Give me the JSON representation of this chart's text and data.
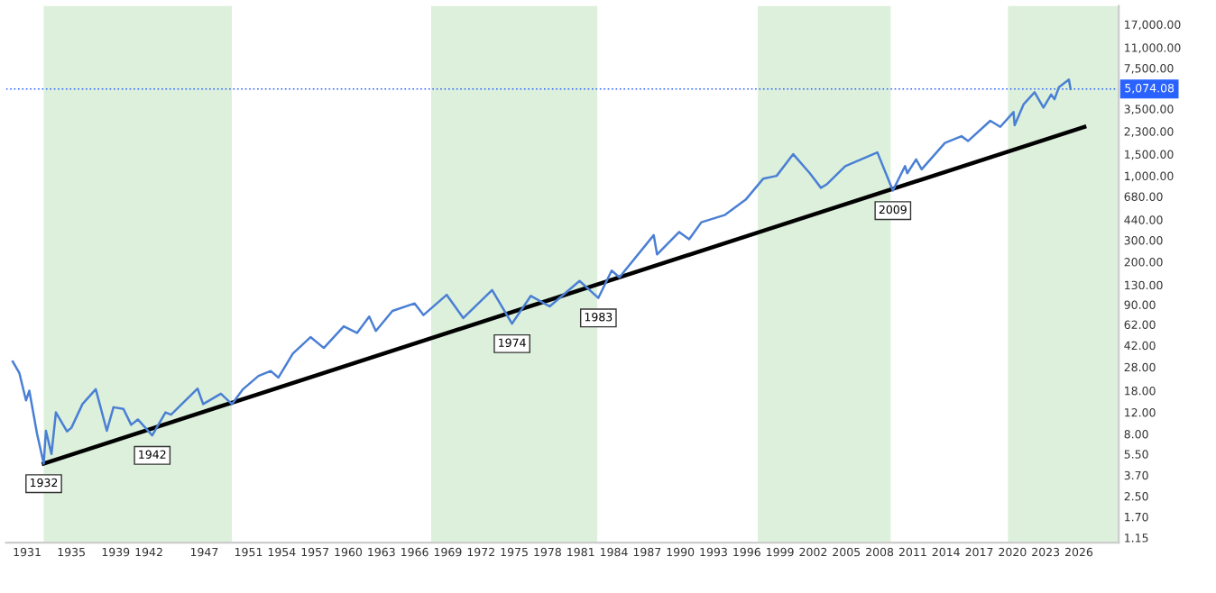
{
  "chart_data": {
    "type": "line",
    "log": "y",
    "grid": false,
    "legend": false,
    "marker": "none",
    "line_style": "solid",
    "xlim": [
      1929.1,
      2029.6
    ],
    "ylim": [
      1.05,
      24000
    ],
    "xticks": [
      1931,
      1935,
      1939,
      1942,
      1947,
      1951,
      1954,
      1957,
      1960,
      1963,
      1966,
      1969,
      1972,
      1975,
      1978,
      1981,
      1984,
      1987,
      1990,
      1993,
      1996,
      1999,
      2002,
      2005,
      2008,
      2011,
      2014,
      2017,
      2020,
      2023,
      2026
    ],
    "yticks": [
      {
        "value": 1.15,
        "label": "1.15"
      },
      {
        "value": 1.7,
        "label": "1.70"
      },
      {
        "value": 2.5,
        "label": "2.50"
      },
      {
        "value": 3.7,
        "label": "3.70"
      },
      {
        "value": 5.5,
        "label": "5.50"
      },
      {
        "value": 8,
        "label": "8.00"
      },
      {
        "value": 12,
        "label": "12.00"
      },
      {
        "value": 18,
        "label": "18.00"
      },
      {
        "value": 28,
        "label": "28.00"
      },
      {
        "value": 42,
        "label": "42.00"
      },
      {
        "value": 62,
        "label": "62.00"
      },
      {
        "value": 90,
        "label": "90.00"
      },
      {
        "value": 130,
        "label": "130.00"
      },
      {
        "value": 200,
        "label": "200.00"
      },
      {
        "value": 300,
        "label": "300.00"
      },
      {
        "value": 440,
        "label": "440.00"
      },
      {
        "value": 680,
        "label": "680.00"
      },
      {
        "value": 1000,
        "label": "1,000.00"
      },
      {
        "value": 1500,
        "label": "1,500.00"
      },
      {
        "value": 2300,
        "label": "2,300.00"
      },
      {
        "value": 3500,
        "label": "3,500.00"
      },
      {
        "value": 7500,
        "label": "7,500.00"
      },
      {
        "value": 11000,
        "label": "11,000.00"
      },
      {
        "value": 17000,
        "label": "17,000.00"
      }
    ],
    "series": [
      {
        "color": "#4a7fd4",
        "x": [
          1929.7,
          1930.3,
          1930.9,
          1931.2,
          1931.9,
          1932.5,
          1932.7,
          1933.2,
          1933.6,
          1934.6,
          1935.0,
          1936.0,
          1937.2,
          1938.2,
          1938.8,
          1939.7,
          1940.4,
          1941.0,
          1942.3,
          1943.5,
          1944.0,
          1946.4,
          1946.9,
          1948.5,
          1949.5,
          1950.5,
          1951.9,
          1953.0,
          1953.7,
          1955.0,
          1956.6,
          1957.8,
          1959.6,
          1960.8,
          1961.9,
          1962.5,
          1964.0,
          1966.0,
          1966.8,
          1968.9,
          1970.4,
          1973.0,
          1974.8,
          1976.5,
          1978.2,
          1980.9,
          1982.6,
          1983.8,
          1984.5,
          1987.6,
          1987.9,
          1989.9,
          1990.8,
          1991.9,
          1994.0,
          1995.9,
          1997.5,
          1998.7,
          2000.2,
          2001.7,
          2002.7,
          2003.2,
          2004.9,
          2007.8,
          2009.2,
          2010.3,
          2010.5,
          2011.3,
          2011.8,
          2013.9,
          2015.4,
          2016.0,
          2018.0,
          2018.9,
          2020.1,
          2020.2,
          2021.0,
          2022.0,
          2022.8,
          2023.5,
          2023.8,
          2024.2,
          2025.1,
          2025.25
        ],
        "values": [
          31,
          25,
          15,
          18,
          8,
          4.6,
          8.5,
          5.5,
          12,
          8.4,
          9,
          14,
          18.5,
          8.5,
          13.2,
          12.8,
          9.5,
          10.5,
          7.8,
          12,
          11.5,
          18.7,
          14,
          17,
          14,
          18.5,
          23.7,
          26,
          23,
          36,
          49,
          40,
          60,
          53,
          72,
          55,
          80,
          92,
          74,
          108,
          70,
          118,
          63,
          106,
          87,
          140,
          102,
          170,
          150,
          330,
          230,
          350,
          305,
          420,
          480,
          640,
          950,
          1000,
          1500,
          1050,
          800,
          850,
          1200,
          1550,
          760,
          1200,
          1050,
          1360,
          1130,
          1850,
          2100,
          1920,
          2800,
          2500,
          3300,
          2580,
          3800,
          4770,
          3580,
          4580,
          4190,
          5250,
          6050,
          5074.08
        ]
      },
      {
        "color": "#000000",
        "x": [
          1932.5,
          2026.5
        ],
        "values": [
          4.6,
          2500
        ]
      }
    ],
    "bands": [
      {
        "axis": "x",
        "from": 1932.5,
        "to": 1949.5,
        "color": "#dcf0dc"
      },
      {
        "axis": "x",
        "from": 1967.5,
        "to": 1982.5,
        "color": "#dcf0dc"
      },
      {
        "axis": "x",
        "from": 1997,
        "to": 2009,
        "color": "#dcf0dc"
      },
      {
        "axis": "x",
        "from": 2019.6,
        "to": 2029.6,
        "color": "#dcf0dc"
      }
    ],
    "ref_lines": [
      {
        "axis": "y",
        "value": 5074.08,
        "label": "5,074.08",
        "color": "#2962ff",
        "line_style": "dotted"
      }
    ],
    "annotations": [
      {
        "text": "1932",
        "x": 1932.5,
        "y": 4.6
      },
      {
        "text": "1942",
        "x": 1942.3,
        "y": 7.8
      },
      {
        "text": "1974",
        "x": 1974.8,
        "y": 63
      },
      {
        "text": "1983",
        "x": 1982.6,
        "y": 102
      },
      {
        "text": "2009",
        "x": 2009.2,
        "y": 760
      }
    ]
  }
}
